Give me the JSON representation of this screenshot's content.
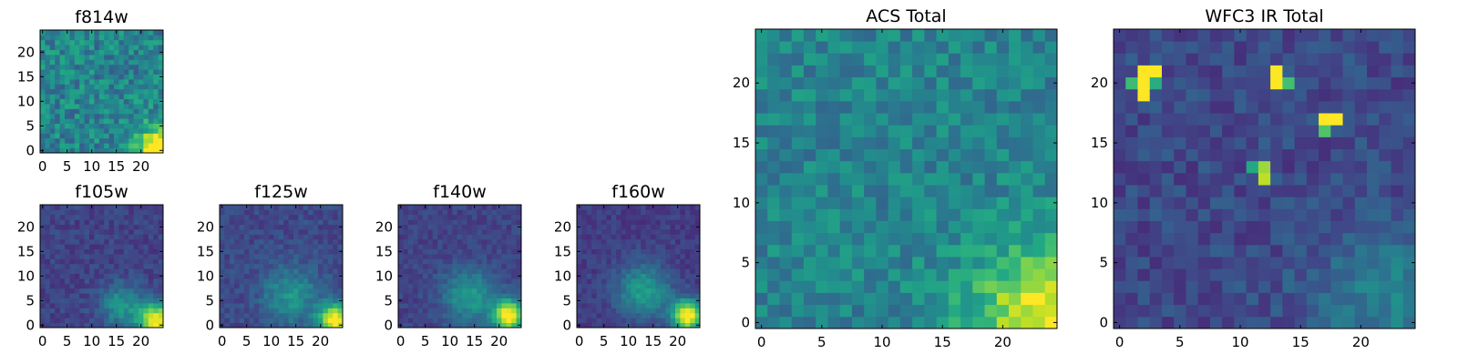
{
  "chart_data": [
    {
      "type": "heatmap",
      "title": "f814w",
      "colormap": "viridis",
      "grid_size": 25,
      "xlim": [
        -0.5,
        24.5
      ],
      "ylim": [
        -0.5,
        24.5
      ],
      "x_ticks": [
        0,
        5,
        10,
        15,
        20
      ],
      "y_ticks": [
        0,
        5,
        10,
        15,
        20
      ],
      "image": {
        "background": 0.45,
        "noise": 0.16,
        "seed": 11,
        "sources": [
          {
            "x": 24,
            "y": 0,
            "amp": 0.75,
            "sigma": 3.2
          }
        ]
      }
    },
    {
      "type": "heatmap",
      "title": "f105w",
      "colormap": "viridis",
      "grid_size": 25,
      "xlim": [
        -0.5,
        24.5
      ],
      "ylim": [
        -0.5,
        24.5
      ],
      "x_ticks": [
        0,
        5,
        10,
        15,
        20
      ],
      "y_ticks": [
        0,
        5,
        10,
        15,
        20
      ],
      "image": {
        "background": 0.2,
        "noise": 0.07,
        "seed": 23,
        "sources": [
          {
            "x": 23,
            "y": 1,
            "amp": 0.8,
            "sigma": 2.5
          },
          {
            "x": 16,
            "y": 4,
            "amp": 0.32,
            "sigma": 3.0
          }
        ]
      }
    },
    {
      "type": "heatmap",
      "title": "f125w",
      "colormap": "viridis",
      "grid_size": 25,
      "xlim": [
        -0.5,
        24.5
      ],
      "ylim": [
        -0.5,
        24.5
      ],
      "x_ticks": [
        0,
        5,
        10,
        15,
        20
      ],
      "y_ticks": [
        0,
        5,
        10,
        15,
        20
      ],
      "image": {
        "background": 0.22,
        "noise": 0.07,
        "seed": 37,
        "sources": [
          {
            "x": 23,
            "y": 1,
            "amp": 0.8,
            "sigma": 2.4
          },
          {
            "x": 14,
            "y": 6,
            "amp": 0.3,
            "sigma": 4.0
          }
        ]
      }
    },
    {
      "type": "heatmap",
      "title": "f140w",
      "colormap": "viridis",
      "grid_size": 25,
      "xlim": [
        -0.5,
        24.5
      ],
      "ylim": [
        -0.5,
        24.5
      ],
      "x_ticks": [
        0,
        5,
        10,
        15,
        20
      ],
      "y_ticks": [
        0,
        5,
        10,
        15,
        20
      ],
      "image": {
        "background": 0.2,
        "noise": 0.06,
        "seed": 41,
        "sources": [
          {
            "x": 22,
            "y": 2,
            "amp": 0.85,
            "sigma": 2.2
          },
          {
            "x": 14,
            "y": 6,
            "amp": 0.35,
            "sigma": 3.8
          }
        ]
      }
    },
    {
      "type": "heatmap",
      "title": "f160w",
      "colormap": "viridis",
      "grid_size": 25,
      "xlim": [
        -0.5,
        24.5
      ],
      "ylim": [
        -0.5,
        24.5
      ],
      "x_ticks": [
        0,
        5,
        10,
        15,
        20
      ],
      "y_ticks": [
        0,
        5,
        10,
        15,
        20
      ],
      "image": {
        "background": 0.18,
        "noise": 0.06,
        "seed": 53,
        "sources": [
          {
            "x": 22,
            "y": 2,
            "amp": 0.9,
            "sigma": 2.2
          },
          {
            "x": 13,
            "y": 7,
            "amp": 0.38,
            "sigma": 3.8
          }
        ]
      }
    },
    {
      "type": "heatmap",
      "title": "ACS Total",
      "colormap": "viridis",
      "grid_size": 25,
      "xlim": [
        -0.5,
        24.5
      ],
      "ylim": [
        -0.5,
        24.5
      ],
      "x_ticks": [
        0,
        5,
        10,
        15,
        20
      ],
      "y_ticks": [
        0,
        5,
        10,
        15,
        20
      ],
      "image": {
        "background": 0.45,
        "noise": 0.12,
        "seed": 67,
        "sources": [
          {
            "x": 24,
            "y": 0,
            "amp": 0.55,
            "sigma": 4.5
          }
        ]
      }
    },
    {
      "type": "heatmap",
      "title": "WFC3 IR Total",
      "colormap": "viridis",
      "grid_size": 25,
      "xlim": [
        -0.5,
        24.5
      ],
      "ylim": [
        -0.5,
        24.5
      ],
      "x_ticks": [
        0,
        5,
        10,
        15,
        20
      ],
      "y_ticks": [
        0,
        5,
        10,
        15,
        20
      ],
      "image": {
        "background": 0.22,
        "noise": 0.09,
        "seed": 79,
        "sources": [
          {
            "x": 22,
            "y": 2,
            "amp": 0.22,
            "sigma": 4.0
          }
        ],
        "hot_pixels": [
          {
            "x": 2,
            "y": 20,
            "v": 1.0
          },
          {
            "x": 3,
            "y": 21,
            "v": 1.0
          },
          {
            "x": 2,
            "y": 21,
            "v": 1.0
          },
          {
            "x": 2,
            "y": 19,
            "v": 1.0
          },
          {
            "x": 3,
            "y": 20,
            "v": 0.62
          },
          {
            "x": 1,
            "y": 20,
            "v": 0.68
          },
          {
            "x": 13,
            "y": 20,
            "v": 1.0
          },
          {
            "x": 13,
            "y": 21,
            "v": 1.0
          },
          {
            "x": 14,
            "y": 20,
            "v": 0.7
          },
          {
            "x": 17,
            "y": 17,
            "v": 1.0
          },
          {
            "x": 18,
            "y": 17,
            "v": 1.0
          },
          {
            "x": 17,
            "y": 16,
            "v": 0.72
          },
          {
            "x": 12,
            "y": 13,
            "v": 0.85
          },
          {
            "x": 12,
            "y": 12,
            "v": 0.9
          },
          {
            "x": 11,
            "y": 13,
            "v": 0.6
          }
        ]
      }
    }
  ]
}
